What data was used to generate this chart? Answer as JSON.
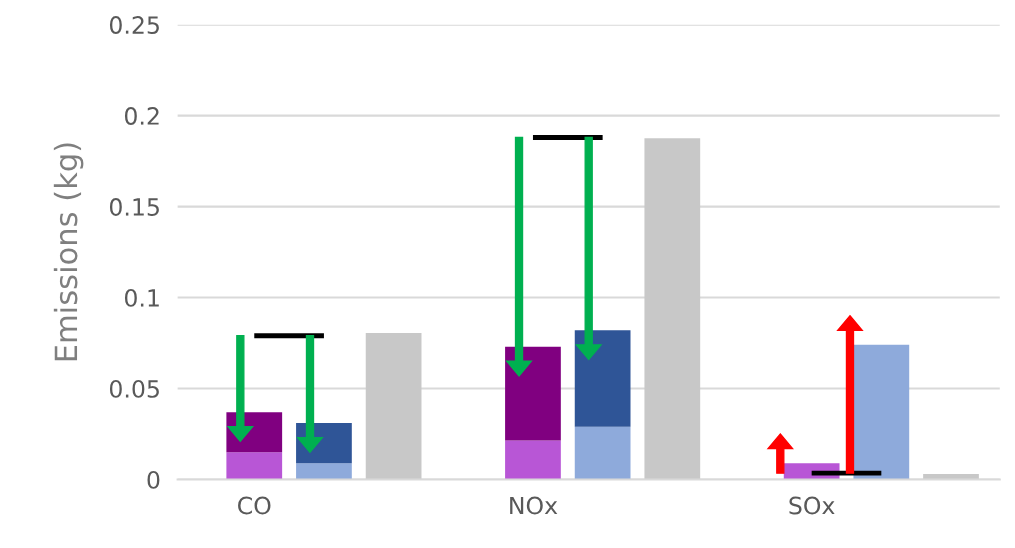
{
  "chart_data": {
    "type": "bar",
    "ylabel": "Emissions (kg)",
    "categories": [
      "CO",
      null,
      null,
      null,
      "NOx",
      null,
      null,
      null,
      "SOx",
      null,
      null
    ],
    "stacked": true,
    "ylim": [
      0,
      0.25
    ],
    "yticks": [
      0,
      0.05,
      0.1,
      0.15,
      0.2,
      0.25
    ],
    "grid": "y",
    "legend": false,
    "series": [
      {
        "colors": [
          "#b856d6",
          "#8eaadb",
          "#c8c8c8",
          "#ffffff",
          "#b856d6",
          "#8eaadb",
          "#c8c8c8",
          "#ffffff",
          "#b856d6",
          "#8eaadb",
          "#c8c8c8"
        ],
        "values": [
          0.015,
          0.009,
          0.0805,
          null,
          0.0215,
          0.029,
          0.1875,
          null,
          0.009,
          0.074,
          0.003
        ]
      },
      {
        "colors": [
          "#800080",
          "#2f5597",
          "#c8c8c8",
          "#ffffff",
          "#800080",
          "#2f5597",
          "#c8c8c8",
          "#ffffff",
          "#800080",
          "#2f5597",
          "#c8c8c8"
        ],
        "values": [
          0.022,
          0.022,
          null,
          null,
          0.0515,
          0.053,
          null,
          null,
          null,
          null,
          null
        ]
      },
      {
        "type": "line",
        "marker": "none",
        "color": "#000000",
        "values": [
          0.079,
          0.079,
          null,
          null,
          null,
          null,
          null,
          null,
          null,
          null,
          null
        ]
      },
      {
        "type": "line",
        "marker": "none",
        "color": "#000000",
        "values": [
          null,
          null,
          null,
          null,
          0.188,
          0.188,
          null,
          null,
          null,
          null,
          null
        ]
      },
      {
        "type": "line",
        "marker": "none",
        "color": "#000000",
        "values": [
          null,
          null,
          null,
          null,
          null,
          null,
          null,
          null,
          0.0035,
          0.0035,
          null
        ]
      }
    ]
  }
}
